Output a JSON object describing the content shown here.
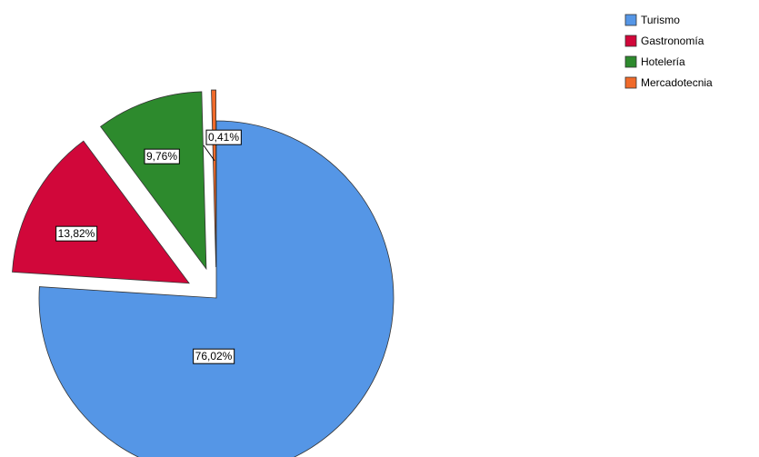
{
  "chart_data": {
    "type": "pie",
    "categories": [
      "Turismo",
      "Gastronomía",
      "Hotelería",
      "Mercadotecnia"
    ],
    "values": [
      76.02,
      13.82,
      9.76,
      0.41
    ],
    "value_labels": [
      "76,02%",
      "13,82%",
      "9,76%",
      "0,41%"
    ],
    "colors": [
      "#5596e6",
      "#d1073a",
      "#2d8a2d",
      "#f06a2a"
    ],
    "legend": "top-right"
  }
}
